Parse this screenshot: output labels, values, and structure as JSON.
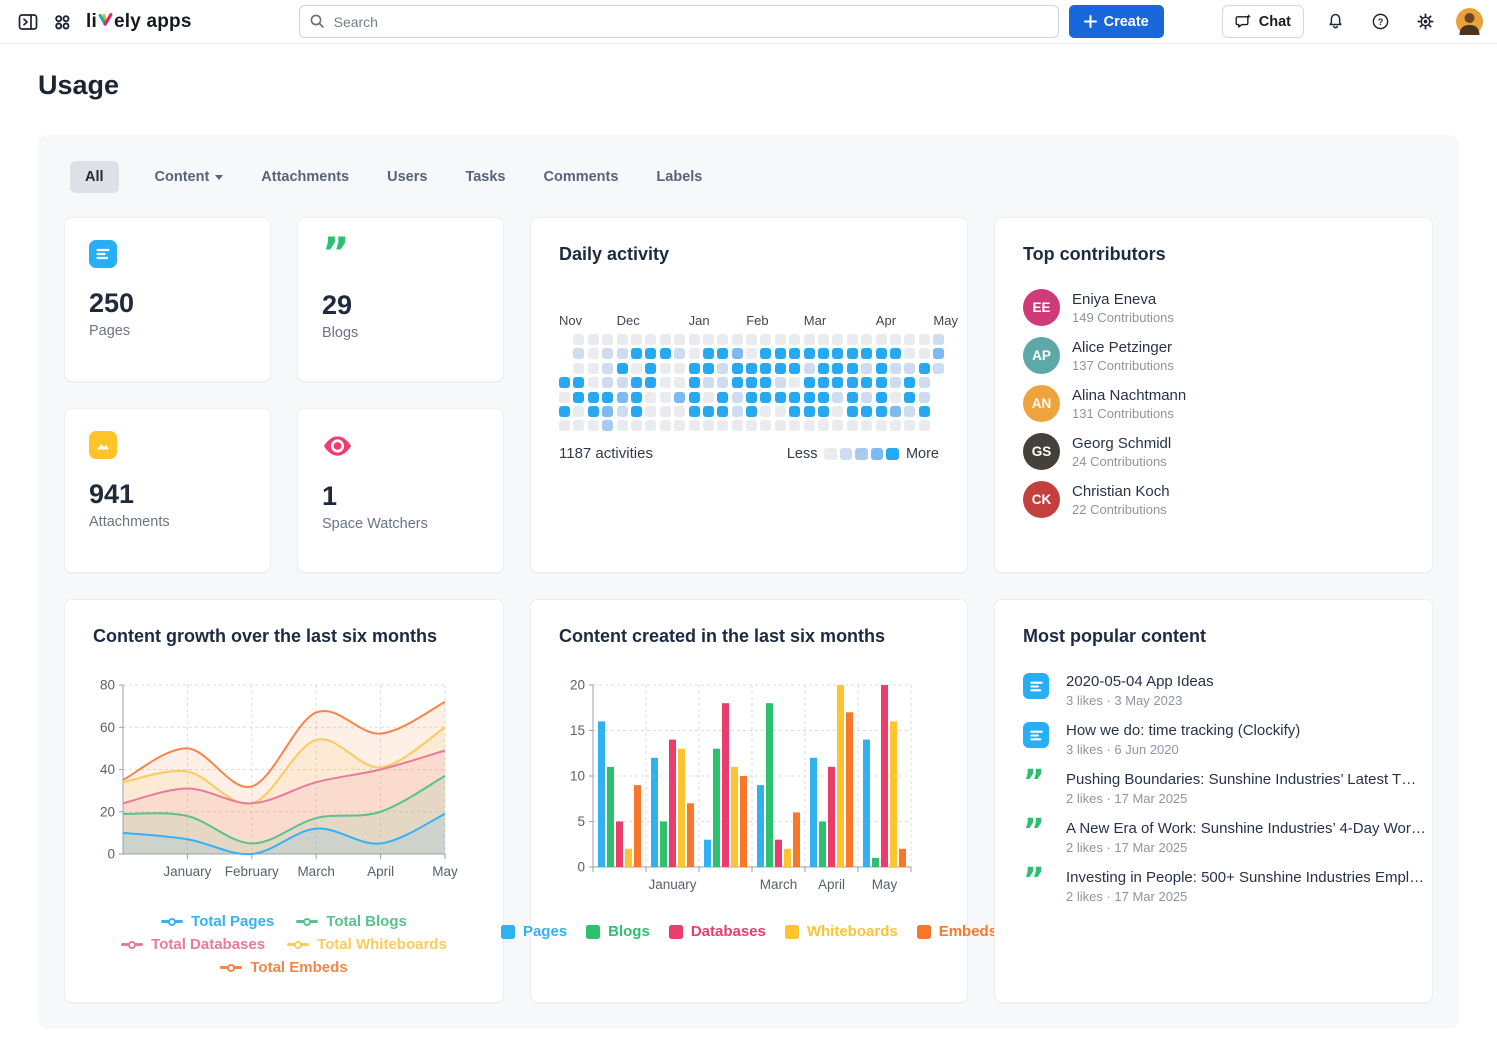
{
  "topbar": {
    "logo_pre": "li",
    "logo_post": "ely apps",
    "search_placeholder": "Search",
    "create_label": "Create",
    "chat_label": "Chat"
  },
  "page": {
    "title": "Usage"
  },
  "tabs": [
    {
      "label": "All",
      "active": true
    },
    {
      "label": "Content",
      "has_dropdown": true
    },
    {
      "label": "Attachments"
    },
    {
      "label": "Users"
    },
    {
      "label": "Tasks"
    },
    {
      "label": "Comments"
    },
    {
      "label": "Labels"
    }
  ],
  "stats": [
    {
      "value": "250",
      "label": "Pages",
      "icon": "page-icon",
      "color": "#27aef5"
    },
    {
      "value": "29",
      "label": "Blogs",
      "icon": "quote-icon",
      "color": "#2ec06e"
    },
    {
      "value": "941",
      "label": "Attachments",
      "icon": "image-icon",
      "color": "#fcc426"
    },
    {
      "value": "1",
      "label": "Space Watchers",
      "icon": "eye-icon",
      "color": "#ee3e6d"
    }
  ],
  "daily_activity": {
    "title": "Daily activity",
    "total_label": "1187 activities",
    "legend_less": "Less",
    "legend_more": "More",
    "levels": [
      "#e9ebee",
      "#cddcf0",
      "#a6cbf0",
      "#7db9f2",
      "#27a8f3"
    ],
    "months": [
      {
        "label": "Nov",
        "col": 0
      },
      {
        "label": "Dec",
        "col": 4
      },
      {
        "label": "Jan",
        "col": 9
      },
      {
        "label": "Feb",
        "col": 13
      },
      {
        "label": "Mar",
        "col": 17
      },
      {
        "label": "Apr",
        "col": 22
      },
      {
        "label": "May",
        "col": 26
      }
    ],
    "grid": [
      [
        -1,
        0,
        0,
        0,
        0,
        0,
        0,
        0,
        0,
        0,
        0,
        0,
        0,
        0,
        0,
        0,
        0,
        0,
        0,
        0,
        0,
        0,
        0,
        0,
        0,
        0,
        1
      ],
      [
        -1,
        1,
        0,
        1,
        1,
        4,
        4,
        4,
        1,
        0,
        4,
        4,
        3,
        0,
        4,
        4,
        4,
        4,
        4,
        4,
        4,
        4,
        4,
        4,
        0,
        0,
        3
      ],
      [
        -1,
        0,
        0,
        1,
        4,
        0,
        4,
        0,
        0,
        4,
        4,
        1,
        4,
        4,
        4,
        4,
        4,
        1,
        4,
        4,
        4,
        1,
        4,
        1,
        1,
        4,
        1
      ],
      [
        4,
        4,
        0,
        1,
        1,
        4,
        4,
        0,
        0,
        4,
        1,
        1,
        4,
        4,
        4,
        1,
        0,
        4,
        4,
        4,
        4,
        4,
        4,
        1,
        4,
        1,
        -1
      ],
      [
        0,
        4,
        4,
        4,
        3,
        4,
        0,
        0,
        3,
        4,
        0,
        4,
        1,
        4,
        4,
        4,
        4,
        4,
        4,
        1,
        4,
        1,
        4,
        0,
        4,
        1,
        -1
      ],
      [
        4,
        0,
        4,
        3,
        1,
        4,
        0,
        0,
        0,
        4,
        4,
        4,
        1,
        4,
        0,
        0,
        4,
        4,
        4,
        0,
        4,
        4,
        4,
        3,
        1,
        4,
        -1
      ],
      [
        0,
        0,
        0,
        2,
        0,
        0,
        0,
        0,
        0,
        0,
        0,
        0,
        0,
        0,
        0,
        0,
        0,
        0,
        0,
        0,
        0,
        0,
        0,
        0,
        0,
        0,
        -1
      ]
    ]
  },
  "contributors": {
    "title": "Top contributors",
    "items": [
      {
        "name": "Eniya Eneva",
        "contributions": "149 Contributions",
        "initials": "EE",
        "color": "#cf3a78"
      },
      {
        "name": "Alice Petzinger",
        "contributions": "137 Contributions",
        "initials": "AP",
        "color": "#5fa8a8"
      },
      {
        "name": "Alina Nachtmann",
        "contributions": "131 Contributions",
        "initials": "AN",
        "color": "#eda43c"
      },
      {
        "name": "Georg Schmidl",
        "contributions": "24 Contributions",
        "initials": "GS",
        "color": "#46403a"
      },
      {
        "name": "Christian Koch",
        "contributions": "22 Contributions",
        "initials": "CK",
        "color": "#c2413e"
      }
    ]
  },
  "chart_data": [
    {
      "type": "area",
      "title": "Content growth over the last six months",
      "x": [
        "",
        "January",
        "February",
        "March",
        "April",
        "May"
      ],
      "series": [
        {
          "name": "Total Pages",
          "color": "#36b1f5",
          "values": [
            10,
            7,
            0,
            12,
            5,
            19
          ]
        },
        {
          "name": "Total Blogs",
          "color": "#57c28e",
          "values": [
            19,
            18,
            5,
            17,
            20,
            37
          ]
        },
        {
          "name": "Total Databases",
          "color": "#e87a9e",
          "values": [
            24,
            31,
            24,
            34,
            40,
            49
          ]
        },
        {
          "name": "Total Whiteboards",
          "color": "#fbcb5c",
          "values": [
            34,
            39,
            24,
            54,
            41,
            60
          ]
        },
        {
          "name": "Total Embeds",
          "color": "#f58549",
          "values": [
            35,
            50,
            32,
            67,
            57,
            72
          ]
        }
      ],
      "ylim": [
        0,
        80
      ],
      "yticks": [
        0,
        20,
        40,
        60,
        80
      ],
      "grid": "dashed",
      "legend_position": "bottom"
    },
    {
      "type": "bar",
      "title": "Content created in the last six months",
      "x": [
        "",
        "January",
        "",
        "March",
        "April",
        "May"
      ],
      "series": [
        {
          "name": "Pages",
          "color": "#2fb1f3",
          "values": [
            16,
            12,
            3,
            9,
            12,
            14
          ]
        },
        {
          "name": "Blogs",
          "color": "#2ec06e",
          "values": [
            11,
            5,
            13,
            18,
            5,
            1
          ]
        },
        {
          "name": "Databases",
          "color": "#ea3d6e",
          "values": [
            5,
            14,
            18,
            3,
            11,
            20
          ]
        },
        {
          "name": "Whiteboards",
          "color": "#fdc430",
          "values": [
            2,
            13,
            11,
            2,
            20,
            16
          ]
        },
        {
          "name": "Embeds",
          "color": "#f8782b",
          "values": [
            9,
            7,
            10,
            6,
            17,
            2
          ]
        }
      ],
      "ylim": [
        0,
        20
      ],
      "yticks": [
        0,
        5,
        10,
        15,
        20
      ],
      "grid": "dashed",
      "legend_position": "bottom"
    }
  ],
  "popular": {
    "title": "Most popular content",
    "items": [
      {
        "icon": "page",
        "title": "2020-05-04 App Ideas",
        "meta": "3 likes · 3 May 2023"
      },
      {
        "icon": "page",
        "title": "How we do: time tracking (Clockify)",
        "meta": "3 likes · 6 Jun 2020"
      },
      {
        "icon": "quote",
        "title": "Pushing Boundaries: Sunshine Industries’ Latest T…",
        "meta": "2 likes · 17 Mar 2025"
      },
      {
        "icon": "quote",
        "title": "A New Era of Work: Sunshine Industries’ 4-Day Wor…",
        "meta": "2 likes · 17 Mar 2025"
      },
      {
        "icon": "quote",
        "title": "Investing in People: 500+ Sunshine Industries Empl…",
        "meta": "2 likes · 17 Mar 2025"
      }
    ]
  }
}
